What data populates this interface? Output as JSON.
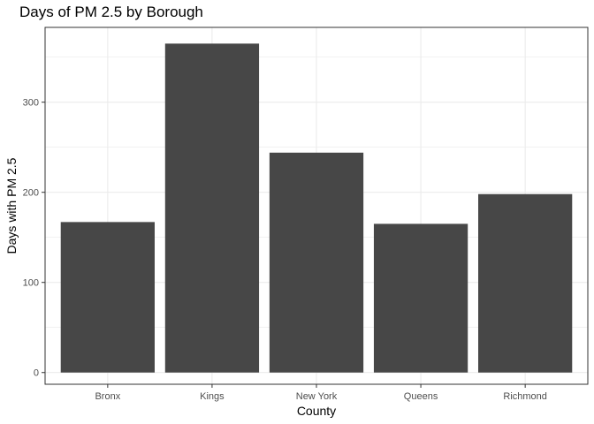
{
  "chart_data": {
    "type": "bar",
    "title": "Days of PM 2.5 by Borough",
    "xlabel": "County",
    "ylabel": "Days with PM 2.5",
    "categories": [
      "Bronx",
      "Kings",
      "New York",
      "Queens",
      "Richmond"
    ],
    "values": [
      167,
      365,
      244,
      165,
      198
    ],
    "ylim": [
      -13,
      383
    ],
    "yticks": [
      0,
      100,
      200,
      300
    ],
    "ytick_labels": [
      "0",
      "100",
      "200",
      "300"
    ],
    "grid": true,
    "bar_color": "#474747",
    "grid_color": "#ebebeb",
    "panel_border_color": "#333333"
  }
}
